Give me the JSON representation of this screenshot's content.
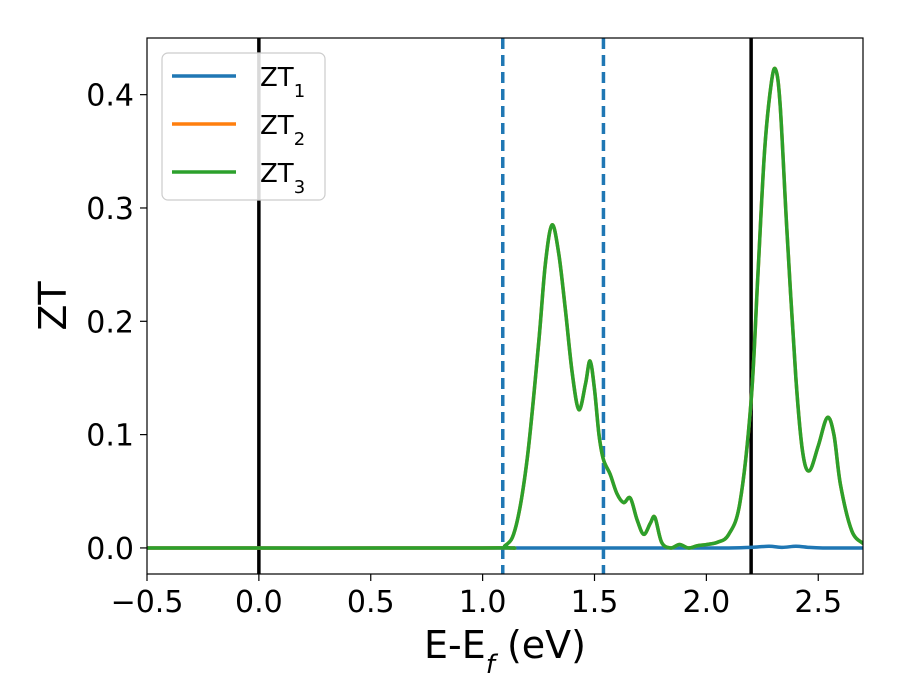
{
  "chart_data": {
    "type": "line",
    "xlabel": "E-E",
    "xlabel_sub": "f",
    "xlabel_unit": " (eV)",
    "ylabel": "ZT",
    "xlim": [
      -0.5,
      2.7
    ],
    "ylim": [
      -0.023,
      0.45
    ],
    "xticks": [
      -0.5,
      0.0,
      0.5,
      1.0,
      1.5,
      2.0,
      2.5
    ],
    "xtick_labels": [
      "−0.5",
      "0.0",
      "0.5",
      "1.0",
      "1.5",
      "2.0",
      "2.5"
    ],
    "yticks": [
      0.0,
      0.1,
      0.2,
      0.3,
      0.4
    ],
    "ytick_labels": [
      "0.0",
      "0.1",
      "0.2",
      "0.3",
      "0.4"
    ],
    "grid": false,
    "legend_placement": "top-left",
    "vertical_lines": [
      {
        "x": 0.0,
        "style": "solid",
        "color": "#000000"
      },
      {
        "x": 2.2,
        "style": "solid",
        "color": "#000000"
      },
      {
        "x": 1.09,
        "style": "dashed",
        "color": "#1f77b4"
      },
      {
        "x": 1.54,
        "style": "dashed",
        "color": "#1f77b4"
      }
    ],
    "series": [
      {
        "name": "ZT",
        "sub": "1",
        "color": "#1f77b4",
        "x": [
          -0.5,
          1.0,
          2.0,
          2.1,
          2.2,
          2.28,
          2.34,
          2.4,
          2.46,
          2.52,
          2.6,
          2.7
        ],
        "y": [
          0.0,
          0.0,
          0.0,
          0.0,
          0.0005,
          0.0015,
          0.0005,
          0.0015,
          0.0005,
          0.0,
          0.0,
          0.0
        ]
      },
      {
        "name": "ZT",
        "sub": "2",
        "color": "#ff7f0e",
        "x": [
          -0.5,
          1.0,
          1.1,
          1.15,
          1.2,
          1.25,
          1.28,
          1.31,
          1.34,
          1.37,
          1.4,
          1.43,
          1.46,
          1.48,
          1.5,
          1.52,
          1.54,
          1.57,
          1.6,
          1.63,
          1.66,
          1.69,
          1.72,
          1.75,
          1.77,
          1.8,
          1.84,
          1.88,
          1.92,
          1.96,
          2.0,
          2.05,
          2.1,
          2.15,
          2.2,
          2.23,
          2.26,
          2.29,
          2.31,
          2.33,
          2.36,
          2.4,
          2.43,
          2.46,
          2.5,
          2.54,
          2.57,
          2.6,
          2.65,
          2.7
        ],
        "y": [
          0.0,
          0.0,
          0.002,
          0.02,
          0.08,
          0.18,
          0.25,
          0.285,
          0.26,
          0.21,
          0.155,
          0.122,
          0.145,
          0.165,
          0.14,
          0.1,
          0.078,
          0.065,
          0.048,
          0.04,
          0.044,
          0.025,
          0.012,
          0.022,
          0.027,
          0.005,
          0.0,
          0.003,
          0.0,
          0.002,
          0.003,
          0.005,
          0.012,
          0.04,
          0.13,
          0.24,
          0.35,
          0.41,
          0.422,
          0.39,
          0.28,
          0.15,
          0.085,
          0.068,
          0.09,
          0.115,
          0.1,
          0.055,
          0.015,
          0.004
        ]
      },
      {
        "name": "ZT",
        "sub": "3",
        "color": "#2ca02c",
        "x": [
          -0.5,
          1.0,
          1.1,
          1.15,
          1.2,
          1.25,
          1.28,
          1.31,
          1.34,
          1.37,
          1.4,
          1.43,
          1.46,
          1.48,
          1.5,
          1.52,
          1.54,
          1.57,
          1.6,
          1.63,
          1.66,
          1.69,
          1.72,
          1.75,
          1.77,
          1.8,
          1.84,
          1.88,
          1.92,
          1.96,
          2.0,
          2.05,
          2.1,
          2.15,
          2.2,
          2.23,
          2.26,
          2.29,
          2.31,
          2.33,
          2.36,
          2.4,
          2.43,
          2.46,
          2.5,
          2.54,
          2.57,
          2.6,
          2.65,
          2.7
        ],
        "y": [
          0.0,
          0.0,
          0.002,
          0.02,
          0.08,
          0.18,
          0.25,
          0.285,
          0.26,
          0.21,
          0.155,
          0.122,
          0.145,
          0.165,
          0.14,
          0.1,
          0.078,
          0.065,
          0.048,
          0.04,
          0.044,
          0.025,
          0.012,
          0.022,
          0.027,
          0.005,
          0.0,
          0.003,
          0.0,
          0.002,
          0.003,
          0.005,
          0.012,
          0.04,
          0.13,
          0.24,
          0.35,
          0.41,
          0.422,
          0.39,
          0.28,
          0.15,
          0.085,
          0.068,
          0.09,
          0.115,
          0.1,
          0.055,
          0.015,
          0.004
        ]
      }
    ]
  }
}
